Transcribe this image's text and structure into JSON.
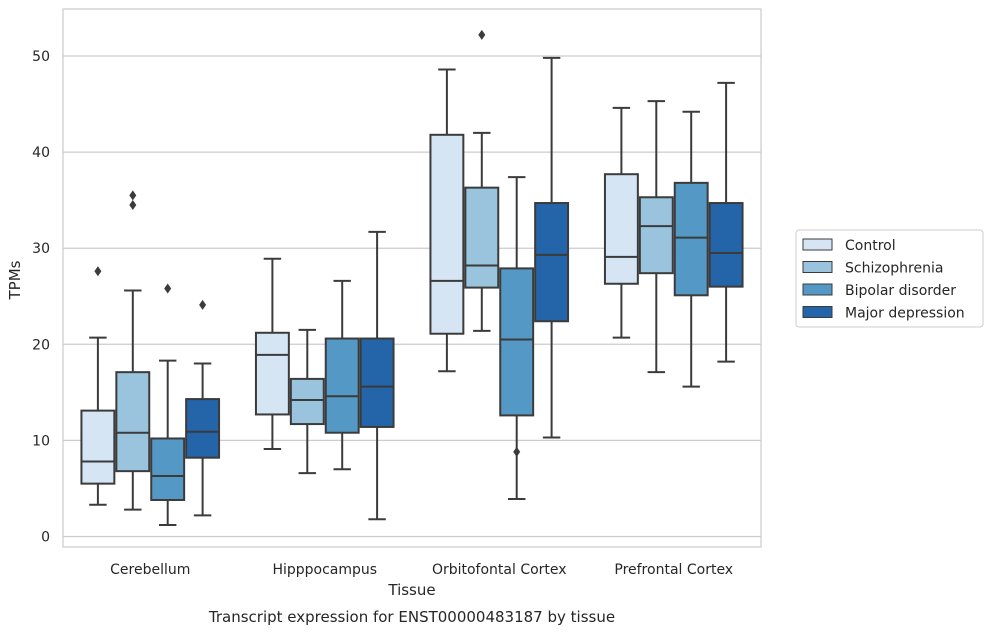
{
  "chart_data": {
    "type": "box",
    "xlabel": "Tissue",
    "ylabel": "TPMs",
    "caption": "Transcript expression for ENST00000483187 by tissue",
    "ylim": [
      -1,
      55
    ],
    "yticks": [
      0,
      10,
      20,
      30,
      40,
      50
    ],
    "grid": "horizontal",
    "legend_position": "right",
    "categories": [
      "Cerebellum",
      "Hipppocampus",
      "Orbitofontal Cortex",
      "Prefrontal Cortex"
    ],
    "series": [
      {
        "name": "Control",
        "color": "#d6e5f4",
        "boxes": [
          {
            "whisker_low": 3.3,
            "q1": 5.5,
            "median": 7.8,
            "q3": 13.1,
            "whisker_high": 20.7,
            "outliers": [
              27.6
            ]
          },
          {
            "whisker_low": 9.1,
            "q1": 12.7,
            "median": 18.9,
            "q3": 21.2,
            "whisker_high": 28.9,
            "outliers": []
          },
          {
            "whisker_low": 17.2,
            "q1": 21.1,
            "median": 26.6,
            "q3": 41.8,
            "whisker_high": 48.6,
            "outliers": []
          },
          {
            "whisker_low": 20.7,
            "q1": 26.3,
            "median": 29.1,
            "q3": 37.7,
            "whisker_high": 44.6,
            "outliers": []
          }
        ]
      },
      {
        "name": "Schizophrenia",
        "color": "#9ac4de",
        "boxes": [
          {
            "whisker_low": 2.8,
            "q1": 6.8,
            "median": 10.8,
            "q3": 17.1,
            "whisker_high": 25.6,
            "outliers": [
              34.5,
              35.5
            ]
          },
          {
            "whisker_low": 6.6,
            "q1": 11.7,
            "median": 14.2,
            "q3": 16.4,
            "whisker_high": 21.5,
            "outliers": []
          },
          {
            "whisker_low": 21.4,
            "q1": 25.9,
            "median": 28.2,
            "q3": 36.3,
            "whisker_high": 42.0,
            "outliers": [
              52.2
            ]
          },
          {
            "whisker_low": 17.1,
            "q1": 27.4,
            "median": 32.3,
            "q3": 35.3,
            "whisker_high": 45.3,
            "outliers": []
          }
        ]
      },
      {
        "name": "Bipolar disorder",
        "color": "#5499c6",
        "boxes": [
          {
            "whisker_low": 1.2,
            "q1": 3.8,
            "median": 6.3,
            "q3": 10.2,
            "whisker_high": 18.3,
            "outliers": [
              25.8
            ]
          },
          {
            "whisker_low": 7.0,
            "q1": 10.8,
            "median": 14.6,
            "q3": 20.6,
            "whisker_high": 26.6,
            "outliers": []
          },
          {
            "whisker_low": 3.9,
            "q1": 12.6,
            "median": 20.5,
            "q3": 27.9,
            "whisker_high": 37.4,
            "outliers": [
              8.8
            ]
          },
          {
            "whisker_low": 15.6,
            "q1": 25.1,
            "median": 31.1,
            "q3": 36.8,
            "whisker_high": 44.2,
            "outliers": []
          }
        ]
      },
      {
        "name": "Major depression",
        "color": "#2464a9",
        "boxes": [
          {
            "whisker_low": 2.2,
            "q1": 8.2,
            "median": 10.9,
            "q3": 14.3,
            "whisker_high": 18.0,
            "outliers": [
              24.1
            ]
          },
          {
            "whisker_low": 1.8,
            "q1": 11.4,
            "median": 15.6,
            "q3": 20.6,
            "whisker_high": 31.7,
            "outliers": []
          },
          {
            "whisker_low": 10.3,
            "q1": 22.4,
            "median": 29.3,
            "q3": 34.7,
            "whisker_high": 49.8,
            "outliers": []
          },
          {
            "whisker_low": 18.2,
            "q1": 26.0,
            "median": 29.5,
            "q3": 34.7,
            "whisker_high": 47.2,
            "outliers": []
          }
        ]
      }
    ]
  }
}
